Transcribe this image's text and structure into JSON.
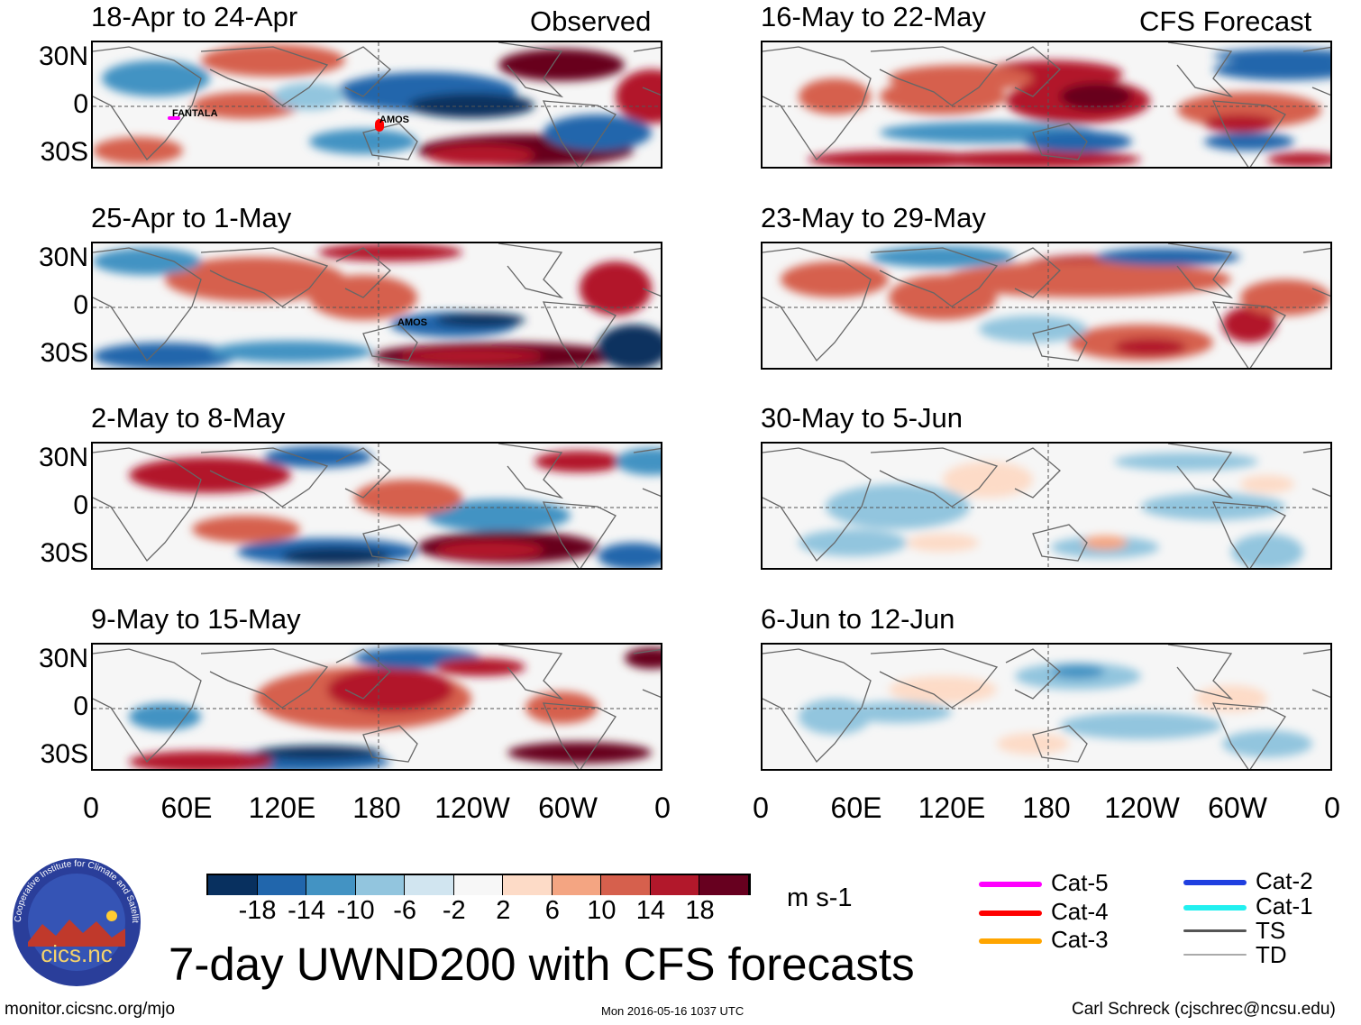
{
  "header": {
    "observed_label": "Observed",
    "forecast_label": "CFS Forecast"
  },
  "panels": {
    "observed": [
      {
        "title": "18-Apr to 24-Apr",
        "storms": [
          "FANTALA",
          "AMOS"
        ]
      },
      {
        "title": "25-Apr to 1-May",
        "storms": [
          "AMOS"
        ]
      },
      {
        "title": "2-May to 8-May",
        "storms": []
      },
      {
        "title": "9-May to 15-May",
        "storms": []
      }
    ],
    "forecast": [
      {
        "title": "16-May to 22-May"
      },
      {
        "title": "23-May to 29-May"
      },
      {
        "title": "30-May to 5-Jun"
      },
      {
        "title": "6-Jun to 12-Jun"
      }
    ]
  },
  "lat_labels": [
    "30N",
    "0",
    "30S"
  ],
  "lon_labels": [
    "0",
    "60E",
    "120E",
    "180",
    "120W",
    "60W",
    "0"
  ],
  "colorbar": {
    "labels": [
      "-18",
      "-14",
      "-10",
      "-6",
      "-2",
      "2",
      "6",
      "10",
      "14",
      "18"
    ],
    "colors": [
      "#08305f",
      "#2166ac",
      "#4393c3",
      "#92c5de",
      "#d1e5f0",
      "#f7f7f7",
      "#fddbc7",
      "#f4a582",
      "#d6604d",
      "#b2182b",
      "#67001f"
    ],
    "units": "m s-1"
  },
  "legend": [
    {
      "label": "Cat-5",
      "color": "#ff00ff"
    },
    {
      "label": "Cat-4",
      "color": "#ff0000"
    },
    {
      "label": "Cat-3",
      "color": "#ffa500"
    },
    {
      "label": "Cat-2",
      "color": "#1f3fe0"
    },
    {
      "label": "Cat-1",
      "color": "#22f0f0"
    },
    {
      "label": "TS",
      "color": "#555555"
    },
    {
      "label": "TD",
      "color": "#aaaaaa"
    }
  ],
  "main_title": "7-day UWND200 with CFS forecasts",
  "logo": {
    "text": "cics.nc",
    "ring_text": "Cooperative Institute for Climate and Satellites"
  },
  "footer": {
    "url": "monitor.cicsnc.org/mjo",
    "timestamp": "Mon 2016-05-16 1037 UTC",
    "credit": "Carl Schreck (cjschrec@ncsu.edu)"
  }
}
